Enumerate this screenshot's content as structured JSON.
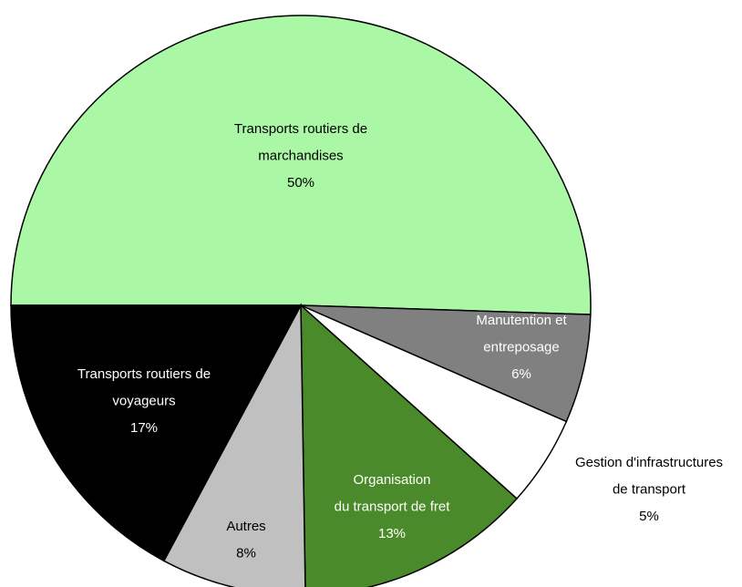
{
  "chart_data": {
    "type": "pie",
    "categories": [
      [
        "Transports routiers de",
        "marchandises"
      ],
      [
        "Manutention et",
        "entreposage"
      ],
      [
        "Gestion d'infrastructures",
        "de transport"
      ],
      [
        "Organisation",
        "du transport de fret"
      ],
      [
        "Autres"
      ],
      [
        "Transports routiers de",
        "voyageurs"
      ]
    ],
    "values": [
      50,
      6,
      5,
      13,
      8,
      17
    ],
    "value_labels": [
      "50%",
      "6%",
      "5%",
      "13%",
      "8%",
      "17%"
    ],
    "colors": [
      "#aaf7a6",
      "#808080",
      "#ffffff",
      "#4b8a2a",
      "#c0c0c0",
      "#000000"
    ]
  }
}
